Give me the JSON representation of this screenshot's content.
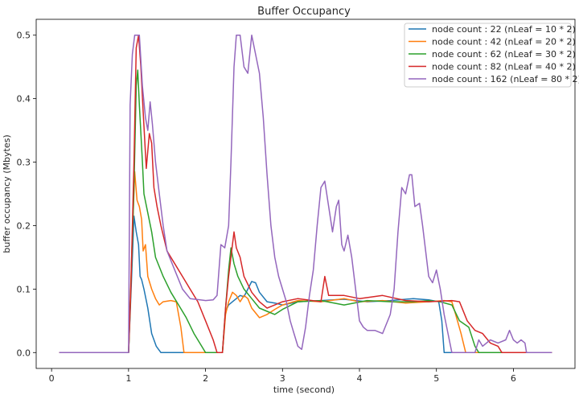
{
  "chart_data": {
    "type": "line",
    "title": "Buffer Occupancy",
    "xlabel": "time (second)",
    "ylabel": "buffer occupancy (Mbytes)",
    "xlim": [
      -0.2,
      6.8
    ],
    "ylim": [
      -0.025,
      0.525
    ],
    "xticks": [
      0,
      1,
      2,
      3,
      4,
      5,
      6
    ],
    "yticks": [
      0.0,
      0.1,
      0.2,
      0.3,
      0.4,
      0.5
    ],
    "xtick_labels": [
      "0",
      "1",
      "2",
      "3",
      "4",
      "5",
      "6"
    ],
    "ytick_labels": [
      "0.0",
      "0.1",
      "0.2",
      "0.3",
      "0.4",
      "0.5"
    ],
    "grid": false,
    "legend_position": "top-right",
    "series": [
      {
        "name": "node count : 22 (nLeaf = 10 * 2)",
        "color": "#1f77b4",
        "points": [
          [
            0.1,
            0
          ],
          [
            1.0,
            0
          ],
          [
            1.04,
            0.12
          ],
          [
            1.07,
            0.215
          ],
          [
            1.1,
            0.19
          ],
          [
            1.13,
            0.17
          ],
          [
            1.15,
            0.12
          ],
          [
            1.17,
            0.115
          ],
          [
            1.2,
            0.1
          ],
          [
            1.25,
            0.07
          ],
          [
            1.3,
            0.03
          ],
          [
            1.36,
            0.01
          ],
          [
            1.42,
            0
          ],
          [
            2.22,
            0
          ],
          [
            2.26,
            0.065
          ],
          [
            2.3,
            0.075
          ],
          [
            2.35,
            0.08
          ],
          [
            2.4,
            0.085
          ],
          [
            2.45,
            0.09
          ],
          [
            2.5,
            0.088
          ],
          [
            2.55,
            0.1
          ],
          [
            2.6,
            0.112
          ],
          [
            2.65,
            0.11
          ],
          [
            2.7,
            0.095
          ],
          [
            2.8,
            0.08
          ],
          [
            2.9,
            0.078
          ],
          [
            3.0,
            0.075
          ],
          [
            3.2,
            0.08
          ],
          [
            3.5,
            0.082
          ],
          [
            3.8,
            0.084
          ],
          [
            4.1,
            0.08
          ],
          [
            4.4,
            0.082
          ],
          [
            4.7,
            0.085
          ],
          [
            4.9,
            0.083
          ],
          [
            5.03,
            0.08
          ],
          [
            5.07,
            0.05
          ],
          [
            5.1,
            0.0
          ],
          [
            6.5,
            0
          ]
        ]
      },
      {
        "name": "node count : 42 (nLeaf = 20 * 2)",
        "color": "#ff7f0e",
        "points": [
          [
            0.1,
            0
          ],
          [
            1.0,
            0
          ],
          [
            1.04,
            0.15
          ],
          [
            1.08,
            0.285
          ],
          [
            1.11,
            0.24
          ],
          [
            1.14,
            0.23
          ],
          [
            1.17,
            0.21
          ],
          [
            1.19,
            0.16
          ],
          [
            1.22,
            0.17
          ],
          [
            1.25,
            0.12
          ],
          [
            1.3,
            0.1
          ],
          [
            1.35,
            0.085
          ],
          [
            1.4,
            0.075
          ],
          [
            1.45,
            0.08
          ],
          [
            1.55,
            0.082
          ],
          [
            1.62,
            0.08
          ],
          [
            1.68,
            0.04
          ],
          [
            1.72,
            0
          ],
          [
            2.22,
            0
          ],
          [
            2.26,
            0.06
          ],
          [
            2.3,
            0.08
          ],
          [
            2.35,
            0.095
          ],
          [
            2.4,
            0.09
          ],
          [
            2.45,
            0.08
          ],
          [
            2.5,
            0.09
          ],
          [
            2.55,
            0.085
          ],
          [
            2.6,
            0.07
          ],
          [
            2.7,
            0.055
          ],
          [
            2.8,
            0.06
          ],
          [
            2.9,
            0.068
          ],
          [
            3.0,
            0.075
          ],
          [
            3.2,
            0.082
          ],
          [
            3.5,
            0.08
          ],
          [
            3.8,
            0.085
          ],
          [
            4.0,
            0.08
          ],
          [
            4.3,
            0.082
          ],
          [
            4.6,
            0.078
          ],
          [
            4.9,
            0.08
          ],
          [
            5.1,
            0.082
          ],
          [
            5.2,
            0.08
          ],
          [
            5.25,
            0.06
          ],
          [
            5.32,
            0.03
          ],
          [
            5.38,
            0
          ],
          [
            6.5,
            0
          ]
        ]
      },
      {
        "name": "node count : 62 (nLeaf = 30 * 2)",
        "color": "#2ca02c",
        "points": [
          [
            0.1,
            0
          ],
          [
            1.0,
            0
          ],
          [
            1.03,
            0.1
          ],
          [
            1.07,
            0.26
          ],
          [
            1.1,
            0.42
          ],
          [
            1.12,
            0.445
          ],
          [
            1.14,
            0.39
          ],
          [
            1.18,
            0.3
          ],
          [
            1.2,
            0.25
          ],
          [
            1.25,
            0.22
          ],
          [
            1.3,
            0.19
          ],
          [
            1.35,
            0.15
          ],
          [
            1.45,
            0.12
          ],
          [
            1.55,
            0.095
          ],
          [
            1.65,
            0.075
          ],
          [
            1.75,
            0.055
          ],
          [
            1.85,
            0.03
          ],
          [
            1.95,
            0.01
          ],
          [
            2.0,
            0
          ],
          [
            2.22,
            0
          ],
          [
            2.26,
            0.07
          ],
          [
            2.3,
            0.13
          ],
          [
            2.33,
            0.165
          ],
          [
            2.37,
            0.14
          ],
          [
            2.42,
            0.12
          ],
          [
            2.5,
            0.1
          ],
          [
            2.6,
            0.085
          ],
          [
            2.7,
            0.07
          ],
          [
            2.8,
            0.065
          ],
          [
            2.9,
            0.06
          ],
          [
            3.0,
            0.068
          ],
          [
            3.2,
            0.08
          ],
          [
            3.5,
            0.082
          ],
          [
            3.8,
            0.075
          ],
          [
            4.1,
            0.082
          ],
          [
            4.4,
            0.08
          ],
          [
            4.7,
            0.08
          ],
          [
            4.9,
            0.082
          ],
          [
            5.05,
            0.08
          ],
          [
            5.2,
            0.075
          ],
          [
            5.3,
            0.05
          ],
          [
            5.42,
            0.04
          ],
          [
            5.5,
            0.01
          ],
          [
            5.55,
            0
          ],
          [
            6.5,
            0
          ]
        ]
      },
      {
        "name": "node count : 82 (nLeaf = 40 * 2)",
        "color": "#d62728",
        "points": [
          [
            0.1,
            0
          ],
          [
            1.0,
            0
          ],
          [
            1.03,
            0.1
          ],
          [
            1.07,
            0.3
          ],
          [
            1.1,
            0.48
          ],
          [
            1.13,
            0.5
          ],
          [
            1.16,
            0.45
          ],
          [
            1.19,
            0.38
          ],
          [
            1.23,
            0.29
          ],
          [
            1.27,
            0.345
          ],
          [
            1.3,
            0.33
          ],
          [
            1.33,
            0.26
          ],
          [
            1.37,
            0.23
          ],
          [
            1.42,
            0.2
          ],
          [
            1.5,
            0.16
          ],
          [
            1.6,
            0.14
          ],
          [
            1.7,
            0.12
          ],
          [
            1.8,
            0.1
          ],
          [
            1.9,
            0.08
          ],
          [
            2.0,
            0.05
          ],
          [
            2.1,
            0.02
          ],
          [
            2.15,
            0
          ],
          [
            2.22,
            0
          ],
          [
            2.26,
            0.07
          ],
          [
            2.3,
            0.12
          ],
          [
            2.34,
            0.16
          ],
          [
            2.37,
            0.19
          ],
          [
            2.4,
            0.165
          ],
          [
            2.45,
            0.15
          ],
          [
            2.5,
            0.12
          ],
          [
            2.6,
            0.095
          ],
          [
            2.7,
            0.08
          ],
          [
            2.8,
            0.07
          ],
          [
            2.9,
            0.075
          ],
          [
            3.0,
            0.08
          ],
          [
            3.2,
            0.085
          ],
          [
            3.5,
            0.08
          ],
          [
            3.55,
            0.12
          ],
          [
            3.6,
            0.09
          ],
          [
            3.8,
            0.09
          ],
          [
            4.0,
            0.085
          ],
          [
            4.3,
            0.09
          ],
          [
            4.6,
            0.082
          ],
          [
            4.9,
            0.08
          ],
          [
            5.2,
            0.082
          ],
          [
            5.3,
            0.08
          ],
          [
            5.4,
            0.05
          ],
          [
            5.5,
            0.035
          ],
          [
            5.6,
            0.03
          ],
          [
            5.7,
            0.015
          ],
          [
            5.8,
            0.01
          ],
          [
            5.85,
            0
          ],
          [
            6.5,
            0
          ]
        ]
      },
      {
        "name": "node count : 162 (nLeaf = 80 * 2)",
        "color": "#9467bd",
        "points": [
          [
            0.1,
            0
          ],
          [
            1.0,
            0
          ],
          [
            1.02,
            0.39
          ],
          [
            1.05,
            0.47
          ],
          [
            1.08,
            0.5
          ],
          [
            1.14,
            0.5
          ],
          [
            1.18,
            0.42
          ],
          [
            1.22,
            0.37
          ],
          [
            1.25,
            0.35
          ],
          [
            1.28,
            0.395
          ],
          [
            1.31,
            0.36
          ],
          [
            1.35,
            0.3
          ],
          [
            1.4,
            0.25
          ],
          [
            1.45,
            0.2
          ],
          [
            1.5,
            0.16
          ],
          [
            1.6,
            0.13
          ],
          [
            1.7,
            0.1
          ],
          [
            1.8,
            0.085
          ],
          [
            2.0,
            0.082
          ],
          [
            2.1,
            0.083
          ],
          [
            2.15,
            0.09
          ],
          [
            2.2,
            0.17
          ],
          [
            2.25,
            0.165
          ],
          [
            2.3,
            0.2
          ],
          [
            2.33,
            0.3
          ],
          [
            2.37,
            0.45
          ],
          [
            2.4,
            0.5
          ],
          [
            2.45,
            0.5
          ],
          [
            2.5,
            0.45
          ],
          [
            2.55,
            0.44
          ],
          [
            2.6,
            0.5
          ],
          [
            2.65,
            0.47
          ],
          [
            2.7,
            0.44
          ],
          [
            2.75,
            0.37
          ],
          [
            2.8,
            0.28
          ],
          [
            2.85,
            0.2
          ],
          [
            2.9,
            0.15
          ],
          [
            2.95,
            0.12
          ],
          [
            3.0,
            0.1
          ],
          [
            3.05,
            0.08
          ],
          [
            3.1,
            0.05
          ],
          [
            3.15,
            0.03
          ],
          [
            3.2,
            0.01
          ],
          [
            3.25,
            0.005
          ],
          [
            3.3,
            0.04
          ],
          [
            3.35,
            0.09
          ],
          [
            3.4,
            0.13
          ],
          [
            3.45,
            0.2
          ],
          [
            3.5,
            0.26
          ],
          [
            3.55,
            0.27
          ],
          [
            3.6,
            0.23
          ],
          [
            3.65,
            0.19
          ],
          [
            3.7,
            0.23
          ],
          [
            3.73,
            0.24
          ],
          [
            3.77,
            0.17
          ],
          [
            3.8,
            0.16
          ],
          [
            3.85,
            0.185
          ],
          [
            3.9,
            0.15
          ],
          [
            3.95,
            0.1
          ],
          [
            4.0,
            0.05
          ],
          [
            4.05,
            0.04
          ],
          [
            4.1,
            0.035
          ],
          [
            4.2,
            0.035
          ],
          [
            4.3,
            0.03
          ],
          [
            4.4,
            0.06
          ],
          [
            4.45,
            0.1
          ],
          [
            4.5,
            0.19
          ],
          [
            4.55,
            0.26
          ],
          [
            4.6,
            0.25
          ],
          [
            4.65,
            0.28
          ],
          [
            4.68,
            0.28
          ],
          [
            4.72,
            0.23
          ],
          [
            4.78,
            0.235
          ],
          [
            4.82,
            0.2
          ],
          [
            4.86,
            0.16
          ],
          [
            4.9,
            0.12
          ],
          [
            4.95,
            0.11
          ],
          [
            5.0,
            0.13
          ],
          [
            5.05,
            0.1
          ],
          [
            5.1,
            0.06
          ],
          [
            5.15,
            0.03
          ],
          [
            5.2,
            0
          ],
          [
            5.5,
            0
          ],
          [
            5.55,
            0.02
          ],
          [
            5.6,
            0.01
          ],
          [
            5.7,
            0.02
          ],
          [
            5.8,
            0.015
          ],
          [
            5.9,
            0.02
          ],
          [
            5.95,
            0.035
          ],
          [
            6.0,
            0.02
          ],
          [
            6.05,
            0.015
          ],
          [
            6.1,
            0.02
          ],
          [
            6.15,
            0.015
          ],
          [
            6.17,
            0
          ],
          [
            6.5,
            0
          ]
        ]
      }
    ]
  }
}
